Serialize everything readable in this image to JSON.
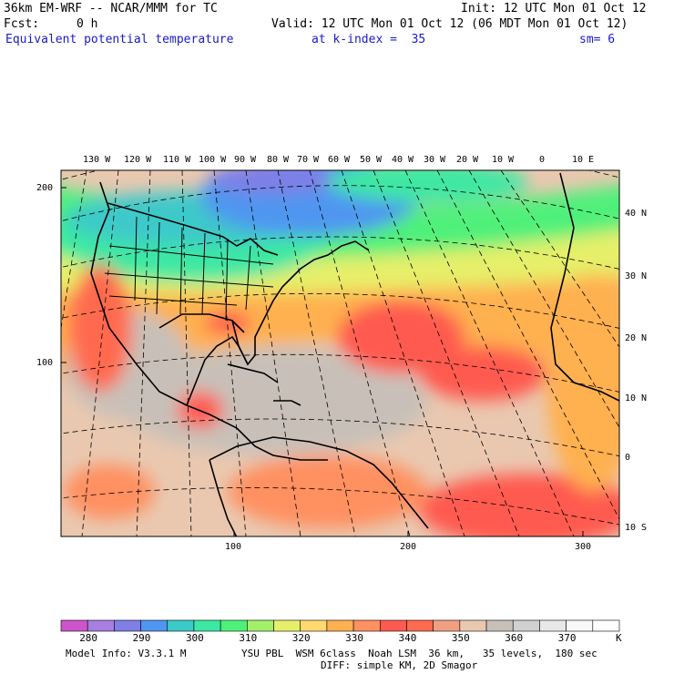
{
  "header": {
    "model_title": "36km EM-WRF -- NCAR/MMM for TC",
    "init": "Init: 12 UTC Mon 01 Oct 12",
    "fcst_label": "Fcst:",
    "fcst_value": "0 h",
    "valid": "Valid: 12 UTC Mon 01 Oct 12 (06 MDT Mon 01 Oct 12)",
    "field_name": "Equivalent potential temperature",
    "k_index": "at k-index =  35",
    "smoothing": "sm= 6"
  },
  "map": {
    "top_lon_labels": [
      "130 W",
      "120 W",
      "110 W",
      "100 W",
      "90 W",
      "80 W",
      "70 W",
      "60 W",
      "50 W",
      "40 W",
      "30 W",
      "20 W",
      "10 W",
      "0",
      "10 E"
    ],
    "right_lat_labels": [
      "40 N",
      "30 N",
      "20 N",
      "10 N",
      "0",
      "10 S"
    ],
    "left_grid_labels": [
      "200",
      "100"
    ],
    "bottom_grid_labels": [
      "100",
      "200",
      "300"
    ]
  },
  "colorbar": {
    "labels": [
      "280",
      "290",
      "300",
      "310",
      "320",
      "330",
      "340",
      "350",
      "360",
      "370"
    ],
    "unit": "K",
    "colors": [
      "#cc55cc",
      "#a87ee0",
      "#7f7fe6",
      "#4f96f0",
      "#3cc9c9",
      "#3ce8a3",
      "#4ff07a",
      "#a3f06a",
      "#e6ef6a",
      "#ffd870",
      "#ffb050",
      "#ff9060",
      "#ff5a50",
      "#ff6a50",
      "#f0a080",
      "#eac8b0",
      "#c8c0b8",
      "#d0d0d0",
      "#e8e8e8",
      "#f8f8f8",
      "#ffffff"
    ]
  },
  "footer": {
    "model_info": "Model Info: V3.3.1 M",
    "physics": "YSU PBL  WSM 6class  Noah LSM  36 km,   35 levels,  180 sec",
    "diffusion": "DIFF: simple KM, 2D Smagor"
  }
}
